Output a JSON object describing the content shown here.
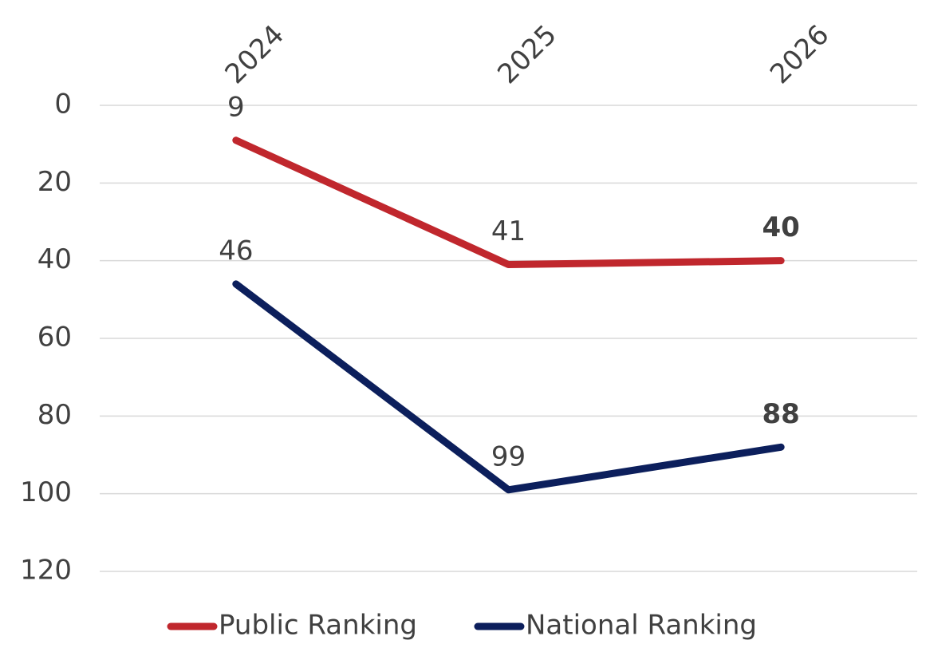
{
  "chart_data": {
    "type": "line",
    "categories": [
      "2024",
      "2025",
      "2026"
    ],
    "series": [
      {
        "name": "Public Ranking",
        "color": "#c0272d",
        "values": [
          9,
          41,
          40
        ]
      },
      {
        "name": "National Ranking",
        "color": "#0c1f5c",
        "values": [
          46,
          99,
          88
        ]
      }
    ],
    "ylim": [
      0,
      120
    ],
    "yticks": [
      0,
      20,
      40,
      60,
      80,
      100,
      120
    ],
    "y_inverted": true,
    "grid": true,
    "legend": "bottom",
    "last_label_bold": true
  }
}
